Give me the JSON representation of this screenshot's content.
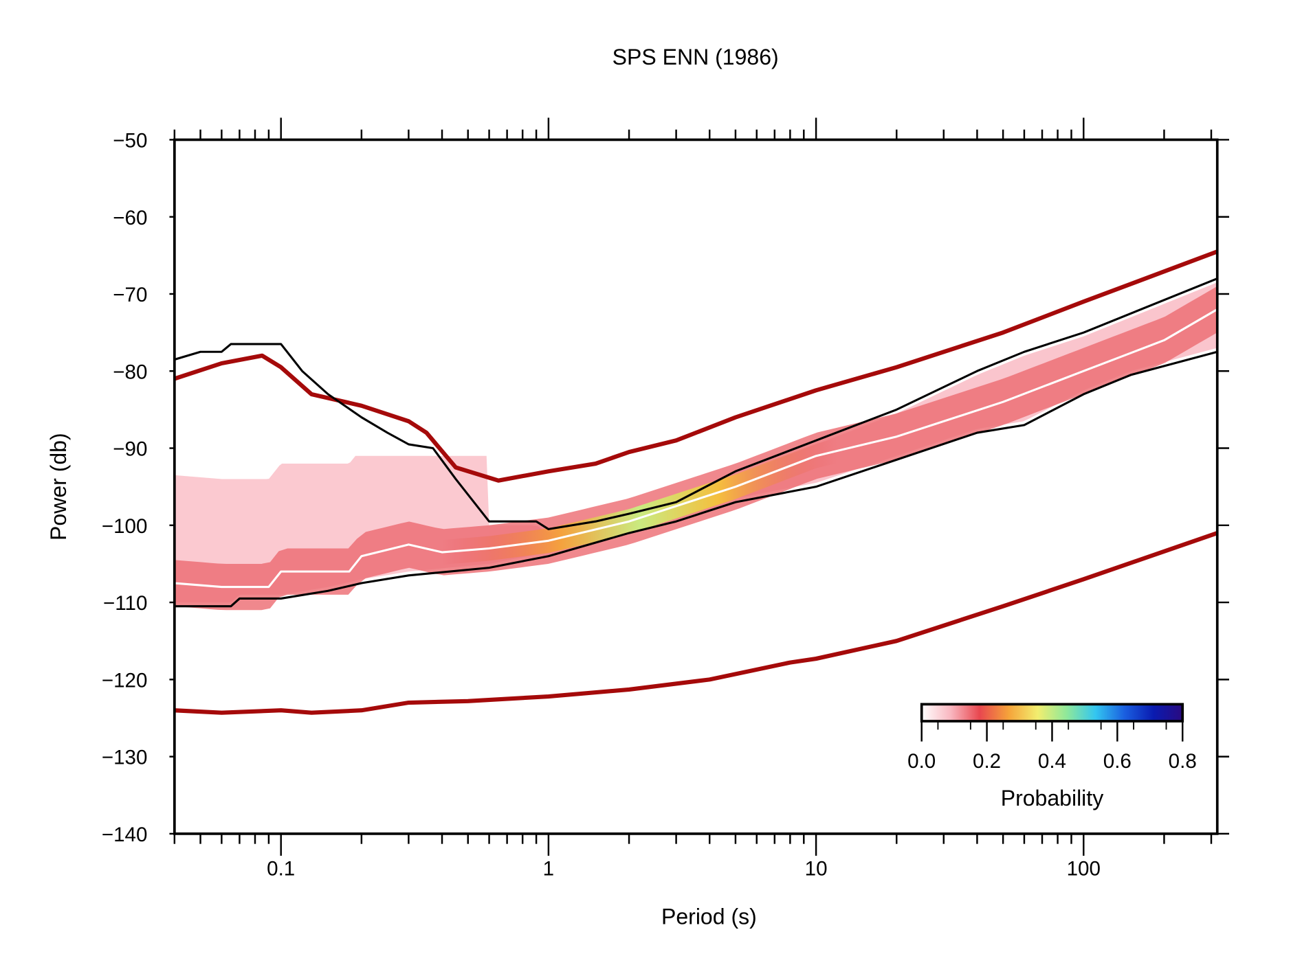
{
  "chart_data": {
    "type": "heatmap",
    "title": "SPS ENN (1986)",
    "xlabel": "Period (s)",
    "ylabel": "Power (db)",
    "xscale": "log",
    "xlim": [
      0.04,
      316
    ],
    "ylim": [
      -140,
      -50
    ],
    "xticks": [
      {
        "v": 0.1,
        "label": "0.1"
      },
      {
        "v": 1,
        "label": "1"
      },
      {
        "v": 10,
        "label": "10"
      },
      {
        "v": 100,
        "label": "100"
      }
    ],
    "yticks": [
      {
        "v": -50,
        "label": "−50"
      },
      {
        "v": -60,
        "label": "−60"
      },
      {
        "v": -70,
        "label": "−70"
      },
      {
        "v": -80,
        "label": "−80"
      },
      {
        "v": -90,
        "label": "−90"
      },
      {
        "v": -100,
        "label": "−100"
      },
      {
        "v": -110,
        "label": "−110"
      },
      {
        "v": -120,
        "label": "−120"
      },
      {
        "v": -130,
        "label": "−130"
      },
      {
        "v": -140,
        "label": "−140"
      }
    ],
    "grid": false,
    "colorbar": {
      "label": "Probability",
      "range": [
        0,
        0.8
      ],
      "ticks": [
        "0.0",
        "0.2",
        "0.4",
        "0.6",
        "0.8"
      ],
      "colors": [
        "#ffffff",
        "#f9b7c0",
        "#e8474f",
        "#f5a33a",
        "#f2ee6f",
        "#8fe89a",
        "#33c6f0",
        "#1a5fe0",
        "#0a1bb0",
        "#2a0a80"
      ],
      "placement": "bottom-right"
    },
    "colors": {
      "noise_model": "#a50a0a",
      "percentile": "#000000",
      "mode": "#ffffff"
    },
    "series": [
      {
        "role": "high-noise-model",
        "color": "#a50a0a",
        "x": [
          0.04,
          0.06,
          0.085,
          0.1,
          0.13,
          0.2,
          0.3,
          0.35,
          0.45,
          0.65,
          1,
          1.5,
          2,
          3,
          5,
          10,
          20,
          50,
          100,
          316
        ],
        "y": [
          -81,
          -79,
          -78,
          -79.5,
          -83,
          -84.5,
          -86.5,
          -88,
          -92.5,
          -94.2,
          -93,
          -92,
          -90.5,
          -89,
          -86,
          -82.5,
          -79.5,
          -75,
          -71,
          -64.5
        ]
      },
      {
        "role": "low-noise-model",
        "color": "#a50a0a",
        "x": [
          0.04,
          0.06,
          0.1,
          0.13,
          0.2,
          0.3,
          0.5,
          1,
          2,
          4,
          8,
          10,
          20,
          50,
          100,
          316
        ],
        "y": [
          -124,
          -124.3,
          -124,
          -124.3,
          -124,
          -123,
          -122.8,
          -122.2,
          -121.3,
          -120,
          -117.8,
          -117.3,
          -115,
          -110.5,
          -107,
          -101
        ]
      },
      {
        "role": "upper-percentile",
        "color": "#000000",
        "x": [
          0.04,
          0.05,
          0.06,
          0.065,
          0.1,
          0.12,
          0.15,
          0.2,
          0.25,
          0.3,
          0.37,
          0.45,
          0.6,
          0.9,
          1,
          1.5,
          2,
          3,
          5,
          10,
          20,
          40,
          60,
          100,
          316
        ],
        "y": [
          -78.5,
          -77.5,
          -77.5,
          -76.5,
          -76.5,
          -80,
          -83,
          -86,
          -88,
          -89.5,
          -90,
          -94,
          -99.5,
          -99.5,
          -100.5,
          -99.5,
          -98.5,
          -97,
          -93,
          -89,
          -85,
          -80,
          -77.5,
          -75,
          -68
        ]
      },
      {
        "role": "lower-percentile",
        "color": "#000000",
        "x": [
          0.04,
          0.065,
          0.07,
          0.1,
          0.15,
          0.2,
          0.3,
          0.6,
          1,
          2,
          3,
          5,
          10,
          20,
          40,
          60,
          100,
          150,
          316
        ],
        "y": [
          -110.5,
          -110.5,
          -109.5,
          -109.5,
          -108.5,
          -107.5,
          -106.5,
          -105.5,
          -104,
          -101,
          -99.5,
          -97,
          -95,
          -91.5,
          -88,
          -87,
          -83,
          -80.5,
          -77.5
        ]
      },
      {
        "role": "mode",
        "color": "#ffffff",
        "x": [
          0.04,
          0.06,
          0.09,
          0.1,
          0.18,
          0.2,
          0.3,
          0.4,
          0.6,
          1,
          2,
          5,
          10,
          20,
          50,
          100,
          200,
          316
        ],
        "y": [
          -107.5,
          -108,
          -108,
          -106,
          -106,
          -104,
          -102.5,
          -103.5,
          -103,
          -102,
          -99.5,
          -95,
          -91,
          -88.5,
          -84,
          -80,
          -76,
          -72
        ]
      }
    ]
  }
}
